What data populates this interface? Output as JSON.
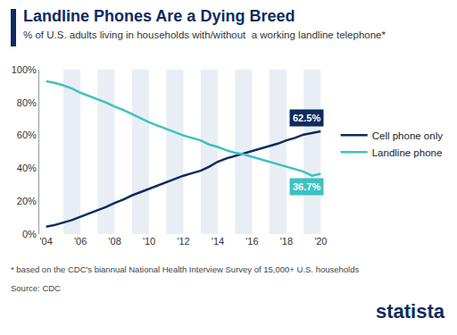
{
  "chart_data": {
    "type": "line",
    "title": "Landline Phones Are a Dying Breed",
    "subtitle": "% of U.S. adults living in households with/without  a working landline telephone*",
    "footnote": "* based on the CDC's biannual National Health Interview Survey of 15,000+ U.S. households",
    "source": "Source: CDC",
    "brand": "statista",
    "categories": [
      "'04",
      null,
      null,
      null,
      "'06",
      null,
      null,
      null,
      "'08",
      null,
      null,
      null,
      "'10",
      null,
      null,
      null,
      "'12",
      null,
      null,
      null,
      "'14",
      null,
      null,
      null,
      "'16",
      null,
      null,
      null,
      "'18",
      null,
      null,
      null,
      "'20"
    ],
    "series": [
      {
        "name": "Cell phone only",
        "color": "#0d2b5e",
        "values": [
          4.5,
          5.5,
          7,
          8.5,
          10.5,
          12.5,
          14.5,
          16.5,
          19,
          21,
          23.5,
          25.5,
          27.5,
          29.5,
          31.5,
          33.5,
          35.5,
          37,
          38.5,
          41,
          44,
          46,
          47.5,
          49,
          50.5,
          52,
          53.5,
          55,
          57,
          58.5,
          60.5,
          61.5,
          62.5
        ],
        "value_labels": [
          null,
          null,
          null,
          null,
          null,
          null,
          null,
          null,
          null,
          null,
          null,
          null,
          null,
          null,
          null,
          null,
          null,
          null,
          null,
          null,
          null,
          null,
          null,
          null,
          null,
          null,
          null,
          null,
          null,
          null,
          null,
          null,
          "62.5%"
        ]
      },
      {
        "name": "Landline phone",
        "color": "#3cc2c0",
        "values": [
          93,
          92,
          90.5,
          88.5,
          86,
          84,
          82,
          80,
          77.5,
          75.5,
          73,
          70.5,
          68,
          66,
          64,
          62,
          60,
          58.5,
          57,
          54.5,
          53,
          51,
          49.5,
          48.5,
          47,
          45.5,
          44,
          42.5,
          41,
          39.5,
          38,
          35.5,
          36.7
        ],
        "value_labels": [
          null,
          null,
          null,
          null,
          null,
          null,
          null,
          null,
          null,
          null,
          null,
          null,
          null,
          null,
          null,
          null,
          null,
          null,
          null,
          null,
          null,
          null,
          null,
          null,
          null,
          null,
          null,
          null,
          null,
          null,
          null,
          null,
          "36.7%"
        ]
      }
    ],
    "ylim": [
      0,
      100
    ],
    "yticks": [
      {
        "value": 0,
        "label": "0%"
      },
      {
        "value": 20,
        "label": "20%"
      },
      {
        "value": 40,
        "label": "40%"
      },
      {
        "value": 60,
        "label": "60%"
      },
      {
        "value": 80,
        "label": "80%"
      },
      {
        "value": 100,
        "label": "100%"
      }
    ],
    "grid": false,
    "legend": "right",
    "data_labels": true
  }
}
